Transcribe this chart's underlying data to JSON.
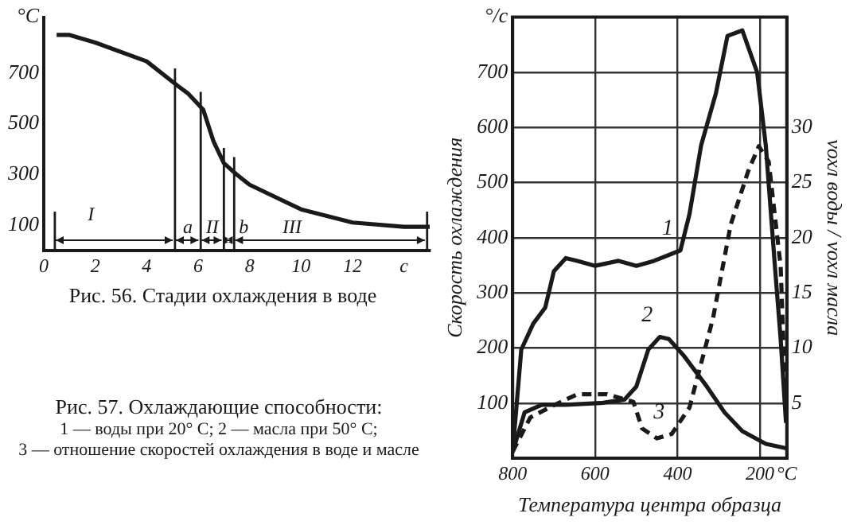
{
  "chart_data": [
    {
      "type": "line",
      "title": "Рис. 56. Стадии охлаждения в воде",
      "marker": "none",
      "xlim": [
        0,
        15
      ],
      "xticks": [
        0,
        2,
        4,
        6,
        8,
        10,
        12,
        {
          "value": 14,
          "label": "c"
        }
      ],
      "ylim": [
        0,
        920
      ],
      "yticks": [
        100,
        300,
        500,
        700,
        {
          "value": 920,
          "label": "°C"
        }
      ],
      "series": [
        {
          "color": "#1a1a1a",
          "x": [
            0.5,
            1,
            2,
            4,
            5.2,
            5.6,
            6.2,
            6.6,
            7,
            7.5,
            8,
            10,
            12,
            14,
            15
          ],
          "values": [
            850,
            850,
            820,
            746,
            650,
            620,
            555,
            430,
            345,
            300,
            260,
            163,
            111,
            94,
            94
          ]
        }
      ],
      "ref_lines": [
        {
          "axis": "x",
          "value": 0.43
        },
        {
          "axis": "x",
          "value": 5.1
        },
        {
          "axis": "x",
          "value": 6.1
        },
        {
          "axis": "x",
          "value": 7.0
        },
        {
          "axis": "x",
          "value": 7.4
        },
        {
          "axis": "x",
          "value": 14.9
        }
      ],
      "annotations": [
        "I",
        {
          "text": "a",
          "x": 5.1,
          "y": 45
        },
        "II",
        "b",
        "III"
      ]
    },
    {
      "type": "line",
      "title": "Рис. 57. Охлаждающие способности:",
      "xlabel": "Температура центра образца",
      "ylabel": "Скорость охлаждения",
      "y2label": "vохл воды / vохл масла",
      "marker": "none",
      "grid": true,
      "xlim": [
        800,
        135
      ],
      "xticks": [
        800,
        600,
        400,
        200,
        {
          "value": 135,
          "label": "°C"
        }
      ],
      "ylim": [
        0,
        800
      ],
      "yticks": [
        100,
        200,
        300,
        400,
        500,
        600,
        700,
        {
          "value": 800,
          "label": "°/с"
        }
      ],
      "y2lim": [
        0,
        40
      ],
      "y2ticks": [
        5,
        10,
        15,
        20,
        25,
        30
      ],
      "series": [
        {
          "name": "1",
          "color": "#1a1a1a",
          "x": [
            800,
            779,
            750,
            721,
            700,
            671,
            643,
            600,
            543,
            500,
            457,
            393,
            371,
            343,
            307,
            279,
            243,
            207,
            186,
            164,
            150,
            137
          ],
          "values": [
            11,
            197,
            244,
            273,
            339,
            363,
            358,
            349,
            358,
            349,
            358,
            377,
            443,
            567,
            662,
            766,
            776,
            700,
            567,
            349,
            216,
            64
          ]
        },
        {
          "name": "2",
          "color": "#1a1a1a",
          "x": [
            800,
            771,
            729,
            671,
            586,
            529,
            500,
            471,
            443,
            421,
            386,
            329,
            286,
            243,
            186,
            137
          ],
          "values": [
            11,
            83,
            97,
            97,
            100,
            106,
            130,
            197,
            220,
            216,
            187,
            130,
            83,
            49,
            26,
            18
          ]
        },
        {
          "name": "3",
          "color": "#1a1a1a",
          "axis": "y2",
          "line_style": "dashed",
          "x": [
            800,
            757,
            700,
            643,
            571,
            507,
            486,
            450,
            414,
            371,
            314,
            271,
            229,
            203,
            179,
            150,
            137
          ],
          "values": [
            0.6,
            3.7,
            4.8,
            5.8,
            5.8,
            5.1,
            2.7,
            1.8,
            2.2,
            4.6,
            12.7,
            21.2,
            26,
            28.3,
            26.9,
            17.4,
            3.7
          ]
        }
      ],
      "annotations": [
        "1 — воды при 20° С; 2 — масла при 50° С;",
        "3 — отношение скоростей охлаждения в воде и масле"
      ]
    }
  ]
}
